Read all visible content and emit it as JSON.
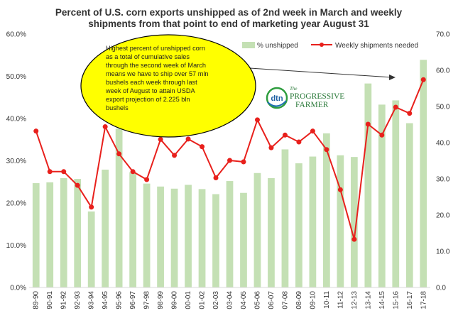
{
  "chart_data": {
    "type": "bar+line",
    "title_lines": [
      "Percent of U.S.  corn exports unshipped as of 2nd week in March and weekly",
      "shipments from that point to end of marketing year August 31"
    ],
    "categories": [
      "89-90",
      "90-91",
      "91-92",
      "92-93",
      "93-94",
      "94-95",
      "95-96",
      "96-97",
      "97-98",
      "98-99",
      "99-00",
      "00-01",
      "01-02",
      "02-03",
      "03-04",
      "04-05",
      "05-06",
      "06-07",
      "07-08",
      "08-09",
      "09-10",
      "10-11",
      "11-12",
      "12-13",
      "13-14",
      "14-15",
      "15-16",
      "16-17",
      "17-18"
    ],
    "left_axis": {
      "ylim": [
        0,
        60
      ],
      "ticks": [
        "0.0%",
        "10.0%",
        "20.0%",
        "30.0%",
        "40.0%",
        "50.0%",
        "60.0%"
      ]
    },
    "right_axis": {
      "ylim": [
        0,
        70
      ],
      "ticks": [
        "0.0",
        "10.0",
        "20.0",
        "30.0",
        "40.0",
        "50.0",
        "60.0",
        "70.0"
      ]
    },
    "series": [
      {
        "name": "% unshipped",
        "type": "bar",
        "axis": "left",
        "color": "#c4e0b4",
        "values": [
          24.7,
          24.9,
          25.9,
          25.7,
          18.0,
          27.9,
          37.6,
          27.3,
          24.6,
          23.9,
          23.4,
          24.3,
          23.3,
          22.1,
          25.2,
          22.4,
          27.1,
          25.9,
          32.7,
          29.4,
          31.0,
          36.5,
          31.3,
          30.9,
          48.3,
          43.3,
          44.3,
          38.9,
          53.9
        ]
      },
      {
        "name": "Weekly shipments needed",
        "type": "line",
        "axis": "right",
        "color": "#e8201c",
        "values": [
          43.2,
          32.0,
          32.0,
          28.2,
          22.2,
          44.4,
          36.9,
          32.0,
          29.8,
          40.9,
          36.5,
          41.0,
          38.9,
          30.3,
          35.1,
          34.7,
          46.3,
          38.6,
          42.1,
          40.2,
          43.2,
          38.1,
          27.0,
          13.3,
          45.1,
          42.1,
          49.8,
          48.1,
          57.4
        ]
      }
    ],
    "annotation": {
      "text": [
        "Highest percent of unshipped corn",
        "as a total of cumulative sales",
        "through the second week of March",
        "means we have to ship over 57 mln",
        "bushels each week through last",
        "week of August to attain USDA",
        "export projection of 2.225 bln",
        "bushels"
      ],
      "fill": "#ffff00"
    },
    "logo": {
      "mark": "dtn",
      "the": "The",
      "name1": "PROGRESSIVE",
      "name2": "FARMER"
    },
    "legend_position": "top-right",
    "grid": false
  }
}
